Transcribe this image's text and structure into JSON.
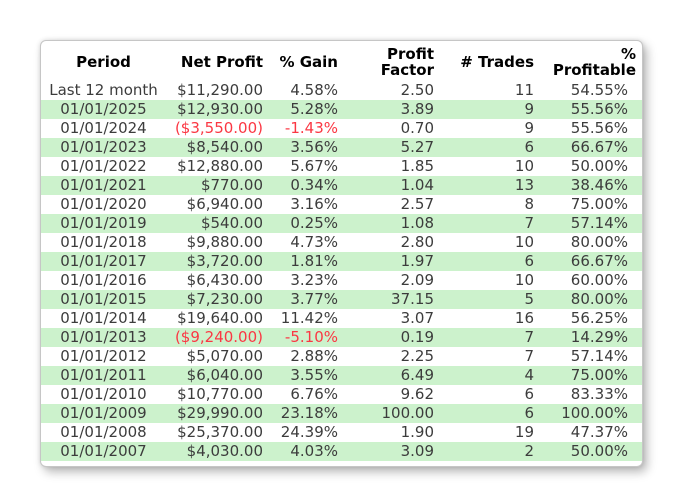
{
  "header_display": {
    "period": "Period",
    "net_profit": "Net Profit",
    "pct_gain": "% Gain",
    "profit_factor_line1": "Profit",
    "profit_factor_line2": "Factor",
    "num_trades": "# Trades",
    "pct_profitable_line1": "%",
    "pct_profitable_line2": "Profitable"
  },
  "colors": {
    "stripe_green": "#ccf2cc",
    "negative_red": "#fb3743",
    "header_text": "#000000",
    "body_text": "#3c3c3c",
    "card_border": "#c6c6c6",
    "card_background": "#ffffff"
  },
  "chart_data": {
    "type": "table",
    "columns": [
      "Period",
      "Net Profit",
      "% Gain",
      "Profit Factor",
      "# Trades",
      "% Profitable"
    ],
    "rows": [
      {
        "period": "Last 12 month",
        "net_profit": "$11,290.00",
        "pct_gain": "4.58%",
        "profit_factor": "2.50",
        "num_trades": "11",
        "pct_profitable": "54.55%",
        "negative": false
      },
      {
        "period": "01/01/2025",
        "net_profit": "$12,930.00",
        "pct_gain": "5.28%",
        "profit_factor": "3.89",
        "num_trades": "9",
        "pct_profitable": "55.56%",
        "negative": false
      },
      {
        "period": "01/01/2024",
        "net_profit": "($3,550.00)",
        "pct_gain": "-1.43%",
        "profit_factor": "0.70",
        "num_trades": "9",
        "pct_profitable": "55.56%",
        "negative": true
      },
      {
        "period": "01/01/2023",
        "net_profit": "$8,540.00",
        "pct_gain": "3.56%",
        "profit_factor": "5.27",
        "num_trades": "6",
        "pct_profitable": "66.67%",
        "negative": false
      },
      {
        "period": "01/01/2022",
        "net_profit": "$12,880.00",
        "pct_gain": "5.67%",
        "profit_factor": "1.85",
        "num_trades": "10",
        "pct_profitable": "50.00%",
        "negative": false
      },
      {
        "period": "01/01/2021",
        "net_profit": "$770.00",
        "pct_gain": "0.34%",
        "profit_factor": "1.04",
        "num_trades": "13",
        "pct_profitable": "38.46%",
        "negative": false
      },
      {
        "period": "01/01/2020",
        "net_profit": "$6,940.00",
        "pct_gain": "3.16%",
        "profit_factor": "2.57",
        "num_trades": "8",
        "pct_profitable": "75.00%",
        "negative": false
      },
      {
        "period": "01/01/2019",
        "net_profit": "$540.00",
        "pct_gain": "0.25%",
        "profit_factor": "1.08",
        "num_trades": "7",
        "pct_profitable": "57.14%",
        "negative": false
      },
      {
        "period": "01/01/2018",
        "net_profit": "$9,880.00",
        "pct_gain": "4.73%",
        "profit_factor": "2.80",
        "num_trades": "10",
        "pct_profitable": "80.00%",
        "negative": false
      },
      {
        "period": "01/01/2017",
        "net_profit": "$3,720.00",
        "pct_gain": "1.81%",
        "profit_factor": "1.97",
        "num_trades": "6",
        "pct_profitable": "66.67%",
        "negative": false
      },
      {
        "period": "01/01/2016",
        "net_profit": "$6,430.00",
        "pct_gain": "3.23%",
        "profit_factor": "2.09",
        "num_trades": "10",
        "pct_profitable": "60.00%",
        "negative": false
      },
      {
        "period": "01/01/2015",
        "net_profit": "$7,230.00",
        "pct_gain": "3.77%",
        "profit_factor": "37.15",
        "num_trades": "5",
        "pct_profitable": "80.00%",
        "negative": false
      },
      {
        "period": "01/01/2014",
        "net_profit": "$19,640.00",
        "pct_gain": "11.42%",
        "profit_factor": "3.07",
        "num_trades": "16",
        "pct_profitable": "56.25%",
        "negative": false
      },
      {
        "period": "01/01/2013",
        "net_profit": "($9,240.00)",
        "pct_gain": "-5.10%",
        "profit_factor": "0.19",
        "num_trades": "7",
        "pct_profitable": "14.29%",
        "negative": true
      },
      {
        "period": "01/01/2012",
        "net_profit": "$5,070.00",
        "pct_gain": "2.88%",
        "profit_factor": "2.25",
        "num_trades": "7",
        "pct_profitable": "57.14%",
        "negative": false
      },
      {
        "period": "01/01/2011",
        "net_profit": "$6,040.00",
        "pct_gain": "3.55%",
        "profit_factor": "6.49",
        "num_trades": "4",
        "pct_profitable": "75.00%",
        "negative": false
      },
      {
        "period": "01/01/2010",
        "net_profit": "$10,770.00",
        "pct_gain": "6.76%",
        "profit_factor": "9.62",
        "num_trades": "6",
        "pct_profitable": "83.33%",
        "negative": false
      },
      {
        "period": "01/01/2009",
        "net_profit": "$29,990.00",
        "pct_gain": "23.18%",
        "profit_factor": "100.00",
        "num_trades": "6",
        "pct_profitable": "100.00%",
        "negative": false
      },
      {
        "period": "01/01/2008",
        "net_profit": "$25,370.00",
        "pct_gain": "24.39%",
        "profit_factor": "1.90",
        "num_trades": "19",
        "pct_profitable": "47.37%",
        "negative": false
      },
      {
        "period": "01/01/2007",
        "net_profit": "$4,030.00",
        "pct_gain": "4.03%",
        "profit_factor": "3.09",
        "num_trades": "2",
        "pct_profitable": "50.00%",
        "negative": false
      }
    ]
  }
}
